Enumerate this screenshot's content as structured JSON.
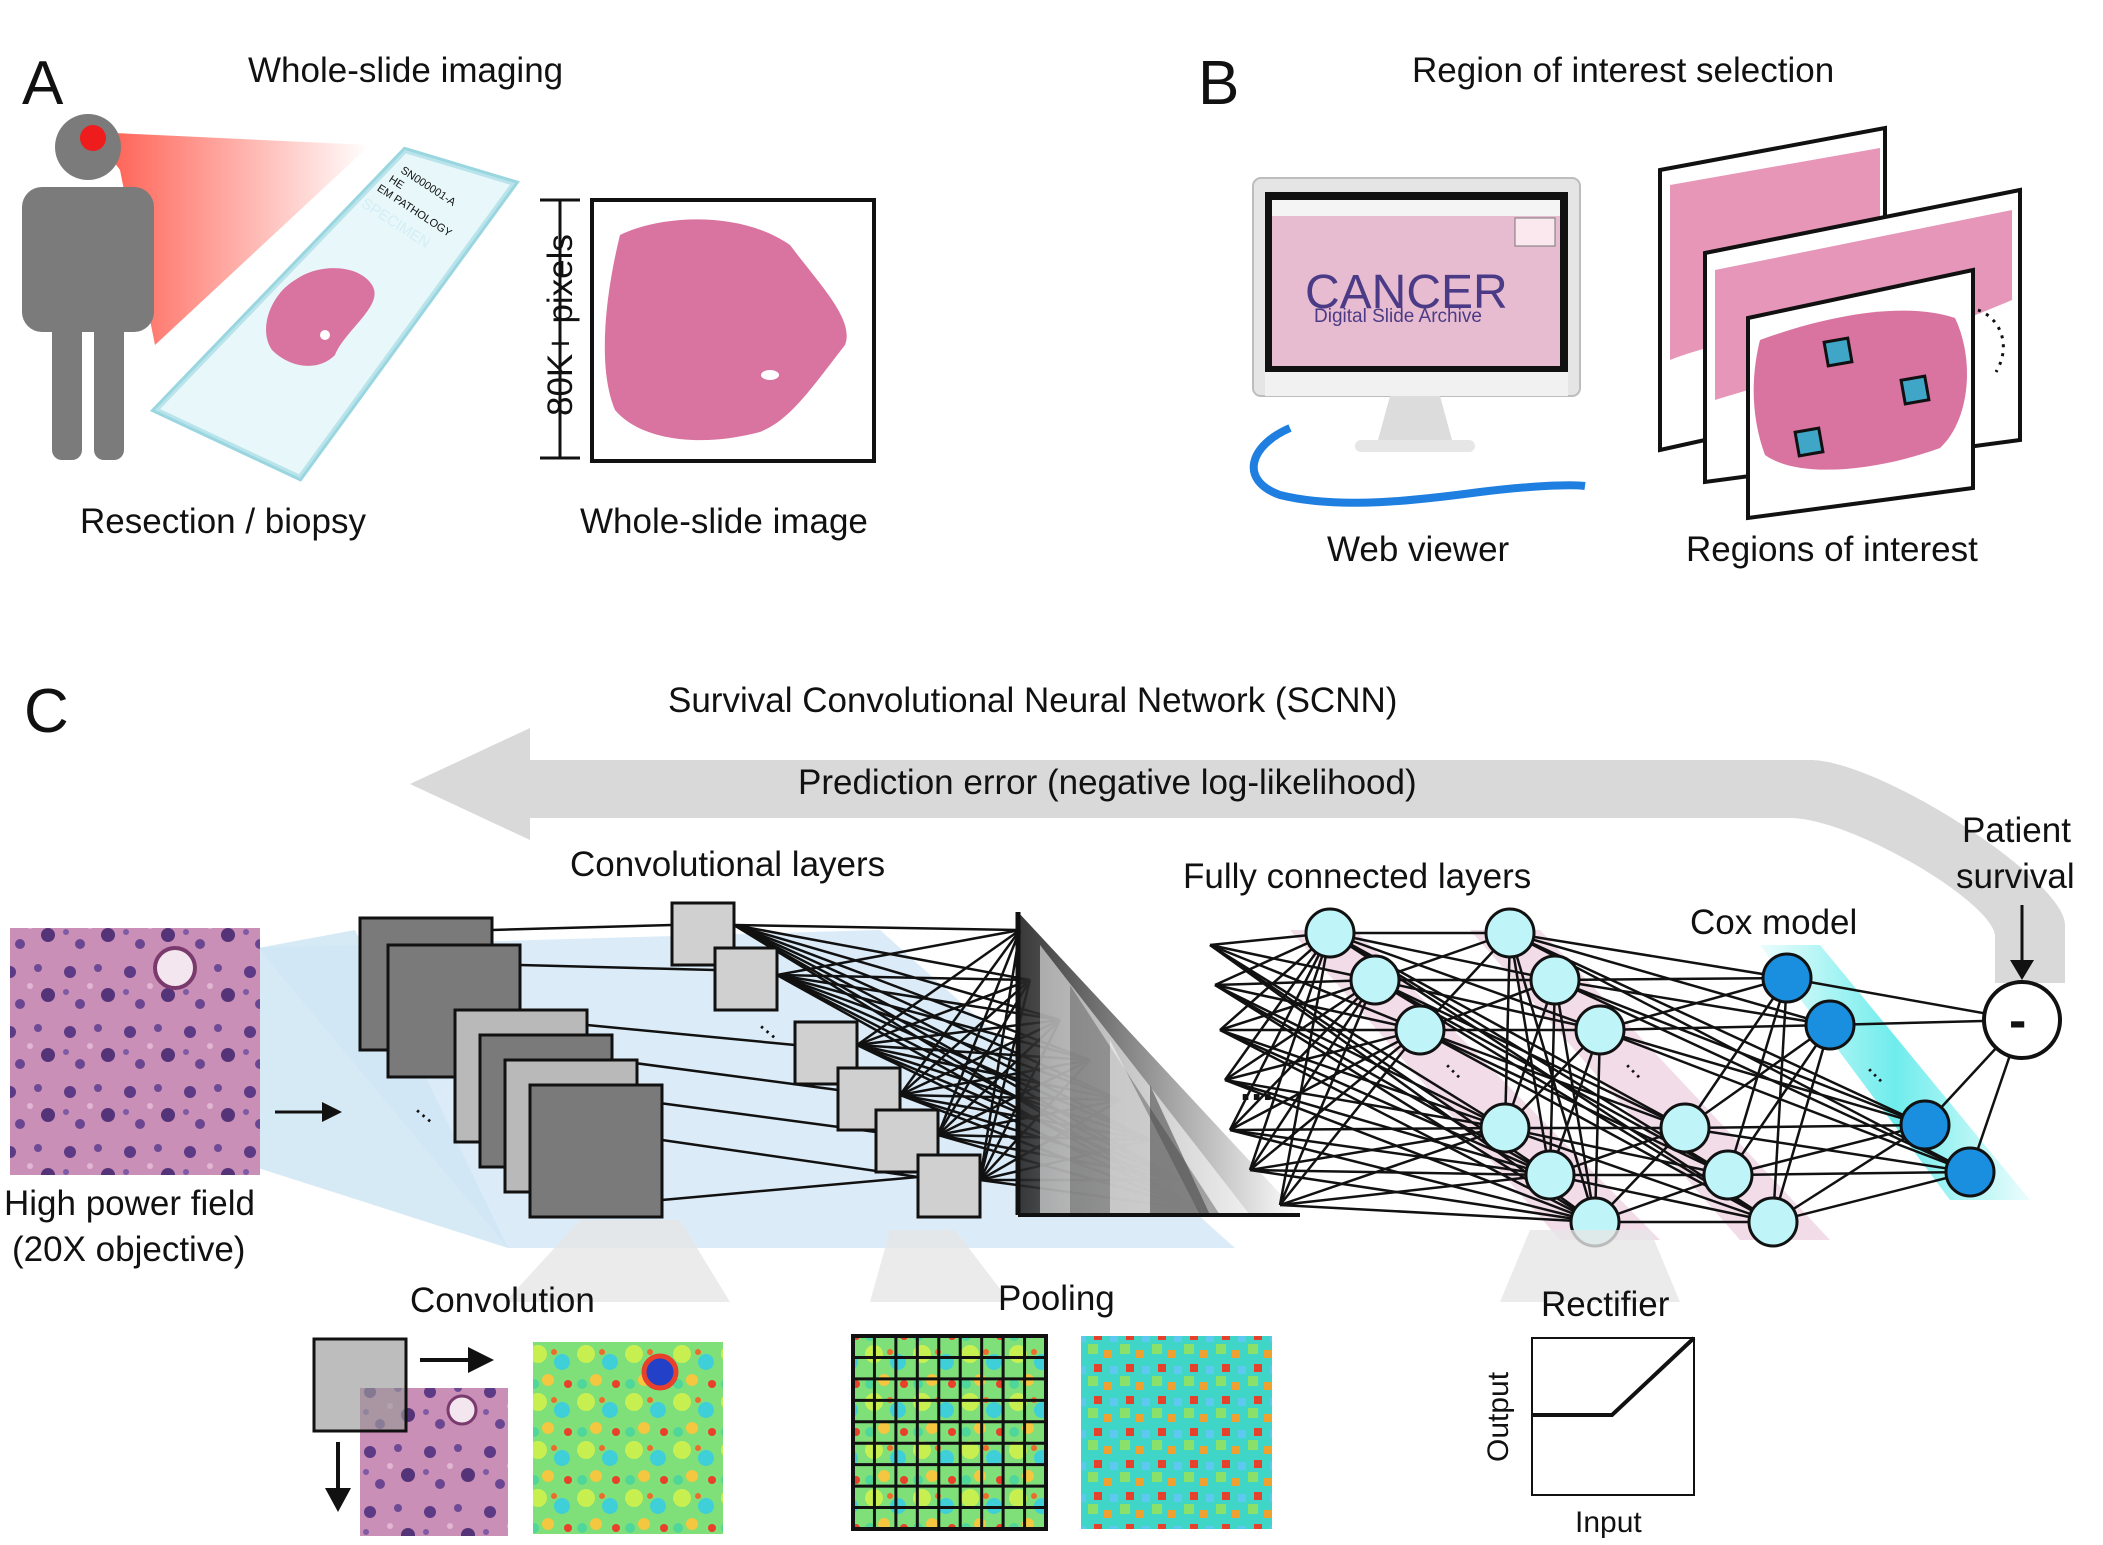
{
  "panel_a": {
    "letter": "A",
    "title": "Whole-slide imaging",
    "slide_label_lines": [
      "SN000001-A",
      "HE",
      "EM PATHOLOGY"
    ],
    "slide_specimen": "SPECIMEN",
    "dimension_label": "80K+ pixels",
    "caption_left": "Resection / biopsy",
    "caption_right": "Whole-slide image"
  },
  "panel_b": {
    "letter": "B",
    "title": "Region of interest selection",
    "screen_title": "CANCER",
    "screen_subtitle": "Digital Slide Archive",
    "caption_left": "Web viewer",
    "caption_right": "Regions of interest"
  },
  "panel_c": {
    "letter": "C",
    "title": "Survival Convolutional Neural Network (SCNN)",
    "feedback_label": "Prediction error (negative log-likelihood)",
    "conv_layers": "Convolutional layers",
    "fc_layers": "Fully connected layers",
    "cox_model": "Cox model",
    "patient_line1": "Patient",
    "patient_line2": "survival",
    "minus": "-",
    "hpf_line1": "High power field",
    "hpf_line2": "(20X objective)",
    "ellipsis": "...",
    "convolution": "Convolution",
    "pooling": "Pooling",
    "rectifier": "Rectifier",
    "rect_output": "Output",
    "rect_input": "Input"
  },
  "colors": {
    "tissue": "#d9739f",
    "tissue_dark": "#c25a8a",
    "neuron": "#bff5f8",
    "cox_neuron": "#1a8fe0",
    "feature_map": "#7a7a7a",
    "pool_map": "#c8c8c8",
    "arrow_gray": "#d6d6d6",
    "blue_band": "#cfe6f5",
    "pink_band": "#f2dce8"
  }
}
